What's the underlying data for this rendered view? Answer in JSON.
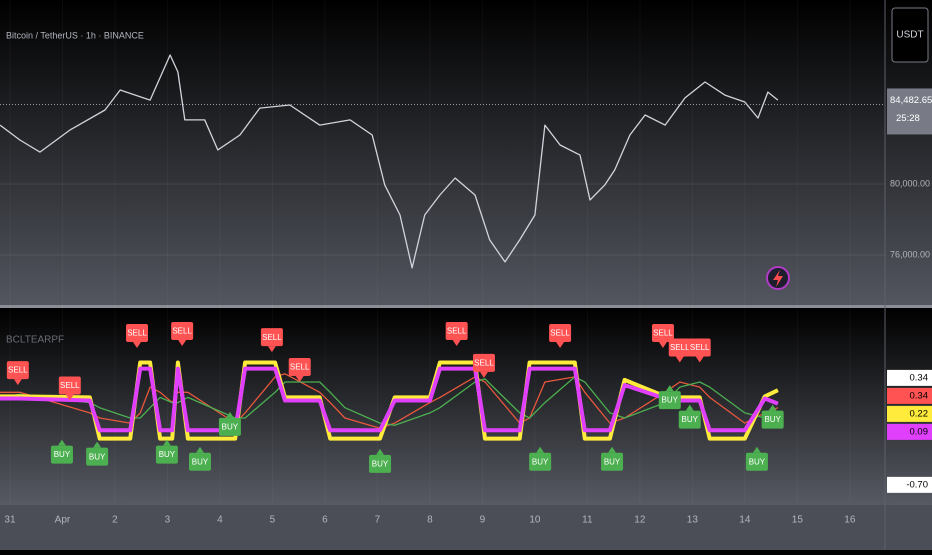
{
  "header": {
    "symbol": "Bitcoin / TetherUS · 1h · BINANCE",
    "currency": "USDT"
  },
  "chart_data": [
    {
      "type": "line",
      "xlim": [
        -0.19,
        16.67
      ],
      "ylim": [
        73180,
        90370
      ],
      "yticks": [
        {
          "value": 76000,
          "label": "76,000.00"
        },
        {
          "value": 80000,
          "label": "80,000.00"
        }
      ],
      "last_price": {
        "value": 84482.65,
        "label": "84,482.65"
      },
      "countdown": "25:28",
      "x": [
        -0.19,
        0.19,
        0.57,
        1.14,
        1.81,
        2.1,
        2.67,
        3.05,
        3.2,
        3.33,
        3.71,
        3.96,
        4.38,
        4.76,
        5.33,
        5.9,
        6.48,
        6.9,
        7.14,
        7.43,
        7.66,
        7.9,
        8.19,
        8.48,
        8.86,
        9.14,
        9.43,
        9.71,
        10.0,
        10.19,
        10.48,
        10.86,
        11.05,
        11.33,
        11.52,
        11.81,
        12.1,
        12.48,
        12.86,
        13.24,
        13.62,
        14.0,
        14.25,
        14.44,
        14.63
      ],
      "series": [
        {
          "color": "#d1d4dc",
          "values": [
            83320,
            82480,
            81800,
            83040,
            84170,
            85300,
            84730,
            87270,
            86310,
            83610,
            83610,
            81920,
            82760,
            84280,
            84450,
            83320,
            83610,
            82760,
            79940,
            78250,
            75270,
            78250,
            79380,
            80340,
            79380,
            76850,
            75610,
            76850,
            78250,
            83320,
            82200,
            81630,
            79100,
            79940,
            80790,
            82760,
            83890,
            83320,
            84850,
            85750,
            85010,
            84620,
            83720,
            85180,
            84730
          ]
        }
      ]
    },
    {
      "type": "line",
      "title": "BCLTEARPF",
      "xlim": [
        -0.19,
        16.67
      ],
      "ylim": [
        -0.75,
        1.0
      ],
      "xticks": [
        {
          "value": 0,
          "label": "31"
        },
        {
          "value": 1,
          "label": "Apr"
        },
        2,
        3,
        4,
        5,
        6,
        7,
        8,
        9,
        10,
        11,
        12,
        13,
        14,
        15,
        16
      ],
      "x": [
        -0.19,
        0.19,
        1.52,
        1.71,
        2.29,
        2.48,
        2.67,
        2.86,
        3.09,
        3.2,
        3.39,
        4.29,
        4.48,
        5.05,
        5.24,
        5.9,
        6.1,
        6.38,
        7.05,
        7.33,
        8.0,
        8.19,
        8.86,
        9.05,
        9.71,
        9.9,
        10.19,
        10.76,
        10.95,
        11.43,
        11.71,
        12.48,
        12.76,
        13.14,
        13.33,
        14.0,
        14.38,
        14.63
      ],
      "series": [
        {
          "color": "#e8573d",
          "values": [
            0.2,
            0.2,
            0.0,
            -0.05,
            -0.1,
            0.0,
            0.25,
            0.2,
            0.1,
            0.2,
            0.2,
            -0.1,
            0.0,
            0.35,
            0.38,
            0.2,
            0.1,
            -0.05,
            -0.15,
            -0.1,
            0.1,
            0.15,
            0.35,
            0.3,
            -0.1,
            -0.05,
            0.3,
            0.35,
            0.2,
            -0.1,
            -0.05,
            0.2,
            0.3,
            0.25,
            0.15,
            -0.1,
            0.0,
            0.05
          ]
        },
        {
          "color": "#4caf50",
          "values": [
            0.15,
            0.18,
            0.1,
            0.05,
            -0.05,
            -0.05,
            0.05,
            0.15,
            0.1,
            0.1,
            0.15,
            -0.05,
            -0.05,
            0.2,
            0.3,
            0.3,
            0.2,
            0.05,
            -0.1,
            -0.12,
            0.0,
            0.05,
            0.3,
            0.33,
            0.0,
            -0.05,
            0.1,
            0.35,
            0.3,
            0.0,
            -0.05,
            0.1,
            0.25,
            0.3,
            0.25,
            0.0,
            -0.05,
            0.0
          ]
        },
        {
          "color": "#ffeb3b",
          "values": [
            0.16,
            0.16,
            0.15,
            -0.25,
            -0.25,
            0.49,
            0.49,
            -0.25,
            -0.25,
            0.49,
            -0.25,
            -0.25,
            0.49,
            0.49,
            0.15,
            0.15,
            -0.25,
            -0.25,
            -0.25,
            0.15,
            0.15,
            0.49,
            0.49,
            -0.25,
            -0.25,
            0.49,
            0.49,
            0.49,
            -0.25,
            -0.25,
            0.32,
            0.16,
            0.15,
            0.15,
            -0.25,
            -0.25,
            0.16,
            0.22
          ]
        },
        {
          "color": "#e040fb",
          "values": [
            0.14,
            0.14,
            0.12,
            -0.17,
            -0.17,
            0.43,
            0.43,
            -0.17,
            -0.17,
            0.43,
            -0.17,
            -0.17,
            0.43,
            0.43,
            0.12,
            0.12,
            -0.17,
            -0.17,
            -0.17,
            0.12,
            0.12,
            0.43,
            0.43,
            -0.17,
            -0.17,
            0.43,
            0.43,
            0.43,
            -0.17,
            -0.17,
            0.27,
            0.14,
            0.12,
            0.12,
            -0.17,
            -0.17,
            0.14,
            0.09
          ]
        }
      ],
      "signals": [
        {
          "x": 0.15,
          "value": 0.27,
          "label": "SELL",
          "color": "#ff5252",
          "position": "above"
        },
        {
          "x": 1.14,
          "value": 0.12,
          "label": "SELL",
          "color": "#ff5252",
          "position": "above"
        },
        {
          "x": 2.42,
          "value": 0.63,
          "label": "SELL",
          "color": "#ff5252",
          "position": "above"
        },
        {
          "x": 3.28,
          "value": 0.65,
          "label": "SELL",
          "color": "#ff5252",
          "position": "above"
        },
        {
          "x": 4.99,
          "value": 0.59,
          "label": "SELL",
          "color": "#ff5252",
          "position": "above"
        },
        {
          "x": 5.52,
          "value": 0.3,
          "label": "SELL",
          "color": "#ff5252",
          "position": "above"
        },
        {
          "x": 8.51,
          "value": 0.65,
          "label": "SELL",
          "color": "#ff5252",
          "position": "above"
        },
        {
          "x": 9.03,
          "value": 0.34,
          "label": "SELL",
          "color": "#ff5252",
          "position": "above"
        },
        {
          "x": 10.48,
          "value": 0.63,
          "label": "SELL",
          "color": "#ff5252",
          "position": "above"
        },
        {
          "x": 12.44,
          "value": 0.63,
          "label": "SELL",
          "color": "#ff5252",
          "position": "above"
        },
        {
          "x": 12.76,
          "value": 0.49,
          "label": "SELL",
          "color": "#ff5252",
          "position": "above"
        },
        {
          "x": 13.14,
          "value": 0.49,
          "label": "SELL",
          "color": "#ff5252",
          "position": "above"
        },
        {
          "x": 0.99,
          "value": -0.26,
          "label": "BUY",
          "color": "#4caf50",
          "position": "below"
        },
        {
          "x": 1.66,
          "value": -0.28,
          "label": "BUY",
          "color": "#4caf50",
          "position": "below"
        },
        {
          "x": 2.99,
          "value": -0.26,
          "label": "BUY",
          "color": "#4caf50",
          "position": "below"
        },
        {
          "x": 3.62,
          "value": -0.33,
          "label": "BUY",
          "color": "#4caf50",
          "position": "below"
        },
        {
          "x": 4.19,
          "value": 0.01,
          "label": "BUY",
          "color": "#4caf50",
          "position": "below"
        },
        {
          "x": 7.05,
          "value": -0.35,
          "label": "BUY",
          "color": "#4caf50",
          "position": "below"
        },
        {
          "x": 10.1,
          "value": -0.33,
          "label": "BUY",
          "color": "#4caf50",
          "position": "below"
        },
        {
          "x": 11.47,
          "value": -0.33,
          "label": "BUY",
          "color": "#4caf50",
          "position": "below"
        },
        {
          "x": 12.57,
          "value": 0.27,
          "label": "BUY",
          "color": "#4caf50",
          "position": "below"
        },
        {
          "x": 12.95,
          "value": 0.08,
          "label": "BUY",
          "color": "#4caf50",
          "position": "below"
        },
        {
          "x": 14.23,
          "value": -0.33,
          "label": "BUY",
          "color": "#4caf50",
          "position": "below"
        },
        {
          "x": 14.53,
          "value": 0.08,
          "label": "BUY",
          "color": "#4caf50",
          "position": "below"
        }
      ],
      "scale_badges": [
        {
          "value": 0.34,
          "color": "#ffffff"
        },
        {
          "value": 0.34,
          "color": "#ff5252"
        },
        {
          "value": 0.22,
          "color": "#ffeb3b"
        },
        {
          "value": 0.09,
          "color": "#e040fb"
        },
        {
          "value": {
            "value": -0.7,
            "label": "-0.70"
          },
          "color": "#ffffff"
        }
      ]
    }
  ]
}
